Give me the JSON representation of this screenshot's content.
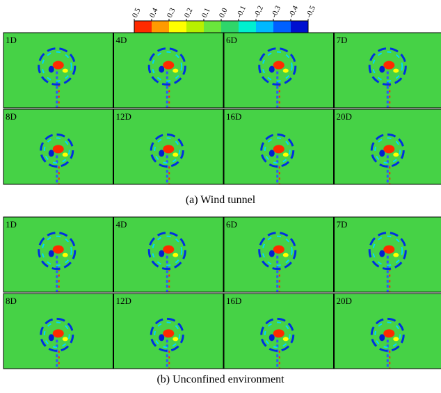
{
  "colorbar": {
    "ticks": [
      "0.5",
      "0.4",
      "0.3",
      "0.2",
      "0.1",
      "0.0",
      "-0.1",
      "-0.2",
      "-0.3",
      "-0.4",
      "-0.5"
    ],
    "colors": [
      "#ff2a00",
      "#ff9a00",
      "#ffff00",
      "#b8f000",
      "#6ae63c",
      "#2fd66a",
      "#00f0d0",
      "#00b8ff",
      "#0060ff",
      "#0010d0"
    ]
  },
  "groups": [
    {
      "panels": [
        "1D",
        "4D",
        "6D",
        "7D",
        "8D",
        "12D",
        "16D",
        "20D"
      ],
      "caption": "(a) Wind tunnel"
    },
    {
      "panels": [
        "1D",
        "4D",
        "6D",
        "7D",
        "8D",
        "12D",
        "16D",
        "20D"
      ],
      "caption": "(b) Unconfined environment"
    }
  ]
}
